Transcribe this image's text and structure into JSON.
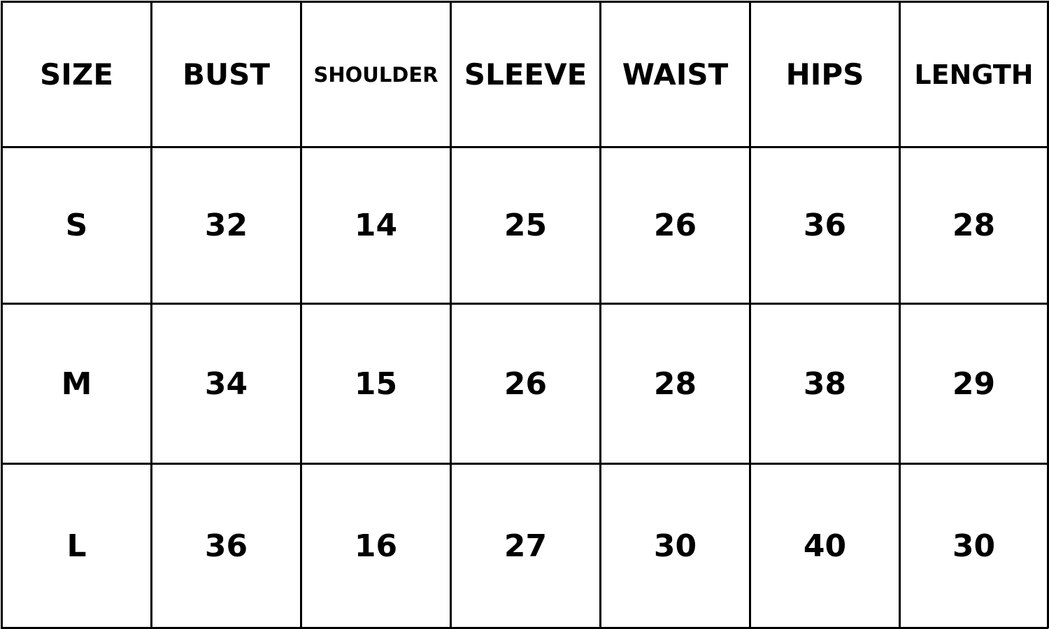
{
  "table": {
    "headers": [
      "SIZE",
      "BUST",
      "SHOULDER",
      "SLEEVE",
      "WAIST",
      "HIPS",
      "LENGTH"
    ],
    "rows": [
      [
        "S",
        "32",
        "14",
        "25",
        "26",
        "36",
        "28"
      ],
      [
        "M",
        "34",
        "15",
        "26",
        "28",
        "38",
        "29"
      ],
      [
        "L",
        "36",
        "16",
        "27",
        "30",
        "40",
        "30"
      ]
    ]
  }
}
